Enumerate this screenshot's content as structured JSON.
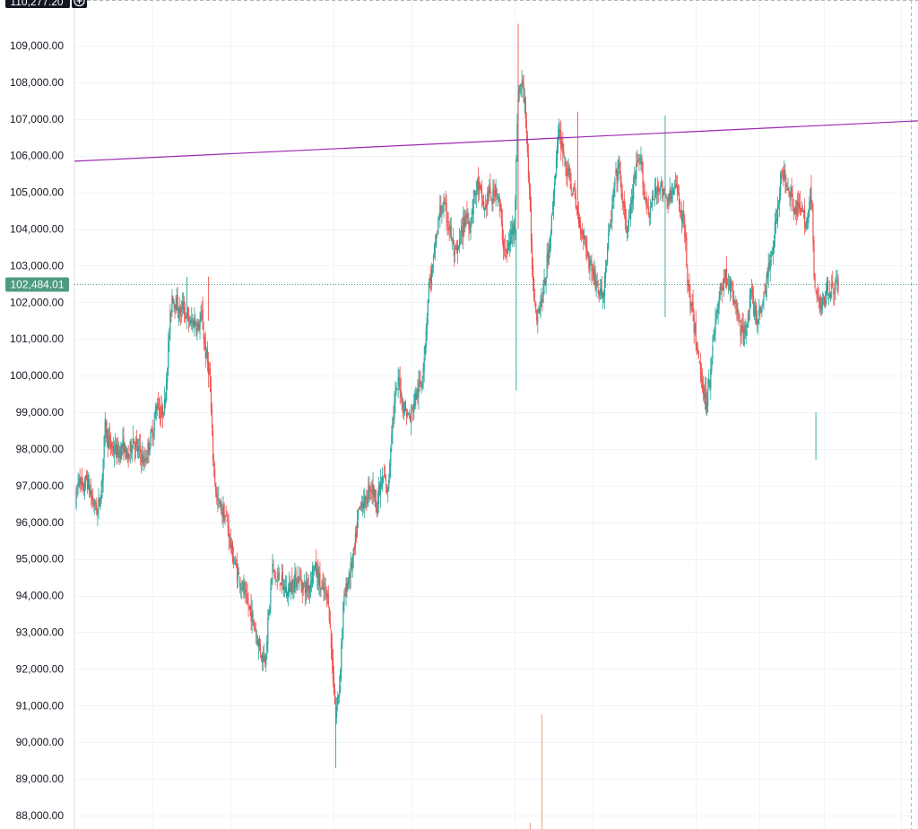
{
  "chart_data": {
    "type": "candlestick",
    "y_axis": {
      "position": "left",
      "ylim": [
        87700,
        110150
      ],
      "tick_labels": [
        "109,000.00",
        "108,000.00",
        "107,000.00",
        "106,000.00",
        "105,000.00",
        "104,000.00",
        "103,000.00",
        "102,000.00",
        "101,000.00",
        "100,000.00",
        "99,000.00",
        "98,000.00",
        "97,000.00",
        "96,000.00",
        "95,000.00",
        "94,000.00",
        "93,000.00",
        "92,000.00",
        "91,000.00",
        "90,000.00",
        "89,000.00",
        "88,000.00"
      ],
      "ticks": [
        109000,
        108000,
        107000,
        106000,
        105000,
        104000,
        103000,
        102000,
        101000,
        100000,
        99000,
        98000,
        97000,
        96000,
        95000,
        94000,
        93000,
        92000,
        91000,
        90000,
        89000,
        88000
      ]
    },
    "top_price_label": "110,277.20",
    "current_price": 102484.01,
    "current_price_label": "102,484.01",
    "trendline": {
      "start": 105850,
      "end": 106950,
      "color": "#9c27b0"
    },
    "colors": {
      "up": "#26a69a",
      "down": "#ef5350",
      "current": "#4e9a82",
      "grid": "#f0f3fa"
    },
    "grid": true,
    "price_path": [
      [
        0,
        96500
      ],
      [
        4,
        97300
      ],
      [
        8,
        96800
      ],
      [
        12,
        97200
      ],
      [
        18,
        96600
      ],
      [
        24,
        96300
      ],
      [
        28,
        96900
      ],
      [
        32,
        98600
      ],
      [
        36,
        98200
      ],
      [
        40,
        98000
      ],
      [
        46,
        97900
      ],
      [
        52,
        98100
      ],
      [
        56,
        97700
      ],
      [
        62,
        98300
      ],
      [
        66,
        98000
      ],
      [
        70,
        97900
      ],
      [
        74,
        97600
      ],
      [
        80,
        98200
      ],
      [
        84,
        98600
      ],
      [
        88,
        99300
      ],
      [
        92,
        98900
      ],
      [
        96,
        99200
      ],
      [
        100,
        100800
      ],
      [
        104,
        102200
      ],
      [
        108,
        102000
      ],
      [
        112,
        101700
      ],
      [
        116,
        101900
      ],
      [
        120,
        101600
      ],
      [
        124,
        101400
      ],
      [
        128,
        101500
      ],
      [
        132,
        101300
      ],
      [
        136,
        101600
      ],
      [
        140,
        100600
      ],
      [
        144,
        100100
      ],
      [
        148,
        97800
      ],
      [
        152,
        96600
      ],
      [
        156,
        96400
      ],
      [
        160,
        96200
      ],
      [
        164,
        95900
      ],
      [
        168,
        95200
      ],
      [
        172,
        94800
      ],
      [
        176,
        94500
      ],
      [
        180,
        94200
      ],
      [
        184,
        93800
      ],
      [
        188,
        93600
      ],
      [
        192,
        93200
      ],
      [
        196,
        92800
      ],
      [
        200,
        92400
      ],
      [
        204,
        92300
      ],
      [
        208,
        93500
      ],
      [
        212,
        94800
      ],
      [
        216,
        94400
      ],
      [
        220,
        94500
      ],
      [
        224,
        94200
      ],
      [
        228,
        94100
      ],
      [
        232,
        94300
      ],
      [
        236,
        94400
      ],
      [
        240,
        94500
      ],
      [
        244,
        94300
      ],
      [
        248,
        94200
      ],
      [
        252,
        94300
      ],
      [
        256,
        94800
      ],
      [
        260,
        94600
      ],
      [
        264,
        94200
      ],
      [
        268,
        94100
      ],
      [
        272,
        93900
      ],
      [
        276,
        92200
      ],
      [
        280,
        90700
      ],
      [
        284,
        91600
      ],
      [
        288,
        93700
      ],
      [
        292,
        94300
      ],
      [
        296,
        94700
      ],
      [
        300,
        95200
      ],
      [
        304,
        96200
      ],
      [
        308,
        96600
      ],
      [
        312,
        96500
      ],
      [
        316,
        97000
      ],
      [
        320,
        96900
      ],
      [
        324,
        96500
      ],
      [
        328,
        97000
      ],
      [
        332,
        97200
      ],
      [
        336,
        96800
      ],
      [
        340,
        98600
      ],
      [
        344,
        99400
      ],
      [
        348,
        99900
      ],
      [
        352,
        99200
      ],
      [
        356,
        99000
      ],
      [
        360,
        98800
      ],
      [
        364,
        99300
      ],
      [
        368,
        99600
      ],
      [
        372,
        99800
      ],
      [
        376,
        100900
      ],
      [
        380,
        102500
      ],
      [
        384,
        102900
      ],
      [
        388,
        103800
      ],
      [
        392,
        104500
      ],
      [
        396,
        104600
      ],
      [
        400,
        104300
      ],
      [
        404,
        103800
      ],
      [
        408,
        103200
      ],
      [
        412,
        103500
      ],
      [
        416,
        104000
      ],
      [
        420,
        104400
      ],
      [
        424,
        104100
      ],
      [
        428,
        104800
      ],
      [
        432,
        105200
      ],
      [
        436,
        104900
      ],
      [
        440,
        104500
      ],
      [
        444,
        105000
      ],
      [
        448,
        104800
      ],
      [
        452,
        105200
      ],
      [
        456,
        104600
      ],
      [
        460,
        103600
      ],
      [
        464,
        103300
      ],
      [
        468,
        103800
      ],
      [
        472,
        104200
      ],
      [
        474,
        105800
      ],
      [
        476,
        107700
      ],
      [
        480,
        108000
      ],
      [
        484,
        107200
      ],
      [
        488,
        104900
      ],
      [
        492,
        102500
      ],
      [
        496,
        101700
      ],
      [
        500,
        102000
      ],
      [
        504,
        102400
      ],
      [
        508,
        103300
      ],
      [
        512,
        104200
      ],
      [
        516,
        105700
      ],
      [
        520,
        106600
      ],
      [
        524,
        106200
      ],
      [
        528,
        105600
      ],
      [
        532,
        105300
      ],
      [
        536,
        104900
      ],
      [
        540,
        104400
      ],
      [
        544,
        104000
      ],
      [
        548,
        103700
      ],
      [
        552,
        103100
      ],
      [
        556,
        102900
      ],
      [
        560,
        102500
      ],
      [
        564,
        102200
      ],
      [
        568,
        102300
      ],
      [
        572,
        103500
      ],
      [
        576,
        104300
      ],
      [
        580,
        105300
      ],
      [
        584,
        105700
      ],
      [
        588,
        104800
      ],
      [
        592,
        104000
      ],
      [
        596,
        104300
      ],
      [
        600,
        105200
      ],
      [
        604,
        105700
      ],
      [
        608,
        105800
      ],
      [
        612,
        104900
      ],
      [
        616,
        104500
      ],
      [
        620,
        104700
      ],
      [
        624,
        105000
      ],
      [
        628,
        105300
      ],
      [
        632,
        104900
      ],
      [
        636,
        104800
      ],
      [
        640,
        104900
      ],
      [
        644,
        105100
      ],
      [
        648,
        105000
      ],
      [
        652,
        104300
      ],
      [
        656,
        103900
      ],
      [
        658,
        102400
      ],
      [
        662,
        101900
      ],
      [
        666,
        101200
      ],
      [
        670,
        100400
      ],
      [
        674,
        99800
      ],
      [
        678,
        99300
      ],
      [
        682,
        99900
      ],
      [
        686,
        101200
      ],
      [
        690,
        101700
      ],
      [
        694,
        102400
      ],
      [
        698,
        102700
      ],
      [
        702,
        102600
      ],
      [
        706,
        102200
      ],
      [
        710,
        101900
      ],
      [
        714,
        101400
      ],
      [
        718,
        101000
      ],
      [
        722,
        101600
      ],
      [
        726,
        102200
      ],
      [
        730,
        101800
      ],
      [
        734,
        101500
      ],
      [
        738,
        102000
      ],
      [
        742,
        102400
      ],
      [
        746,
        103000
      ],
      [
        750,
        103700
      ],
      [
        754,
        104400
      ],
      [
        758,
        105300
      ],
      [
        762,
        105500
      ],
      [
        766,
        105200
      ],
      [
        770,
        104900
      ],
      [
        774,
        104500
      ],
      [
        778,
        104600
      ],
      [
        782,
        104300
      ],
      [
        786,
        104200
      ],
      [
        790,
        104900
      ],
      [
        792,
        104500
      ],
      [
        794,
        102600
      ],
      [
        796,
        102300
      ],
      [
        800,
        101900
      ],
      [
        804,
        102000
      ],
      [
        808,
        102500
      ],
      [
        812,
        102300
      ],
      [
        816,
        102400
      ],
      [
        820,
        102484
      ]
    ]
  }
}
